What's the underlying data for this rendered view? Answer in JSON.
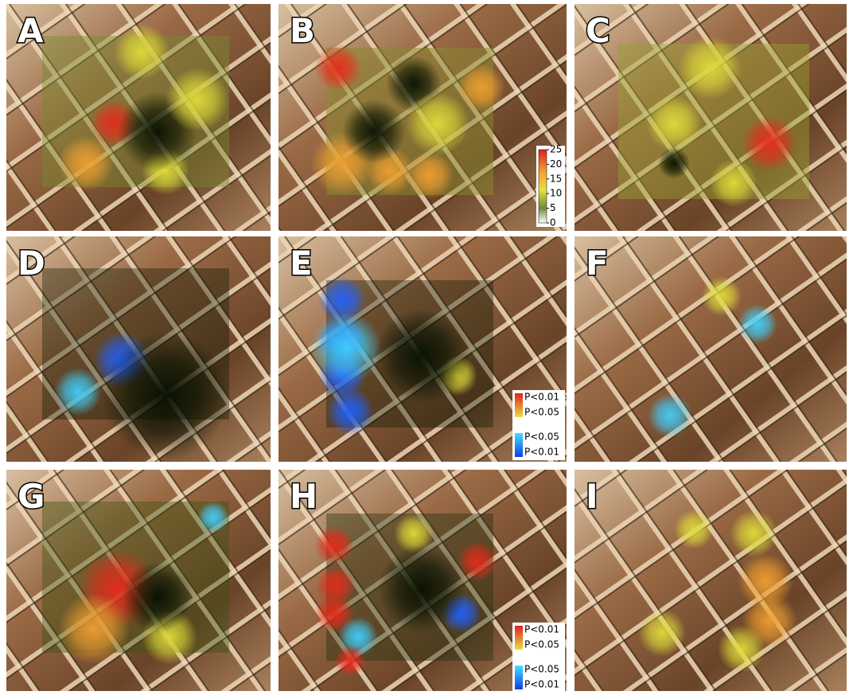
{
  "panels": [
    {
      "label": "A"
    },
    {
      "label": "B"
    },
    {
      "label": "C"
    },
    {
      "label": "D"
    },
    {
      "label": "E"
    },
    {
      "label": "F"
    },
    {
      "label": "G"
    },
    {
      "label": "H"
    },
    {
      "label": "I"
    }
  ],
  "colorbar": {
    "ticks": [
      0,
      5,
      10,
      15,
      20,
      25
    ]
  },
  "legends": [
    {
      "items": [
        "P<0.01",
        "P<0.05",
        "P<0.05",
        "P<0.01"
      ]
    },
    {
      "items": [
        "P<0.01",
        "P<0.05",
        "P<0.05",
        "P<0.01"
      ]
    }
  ]
}
